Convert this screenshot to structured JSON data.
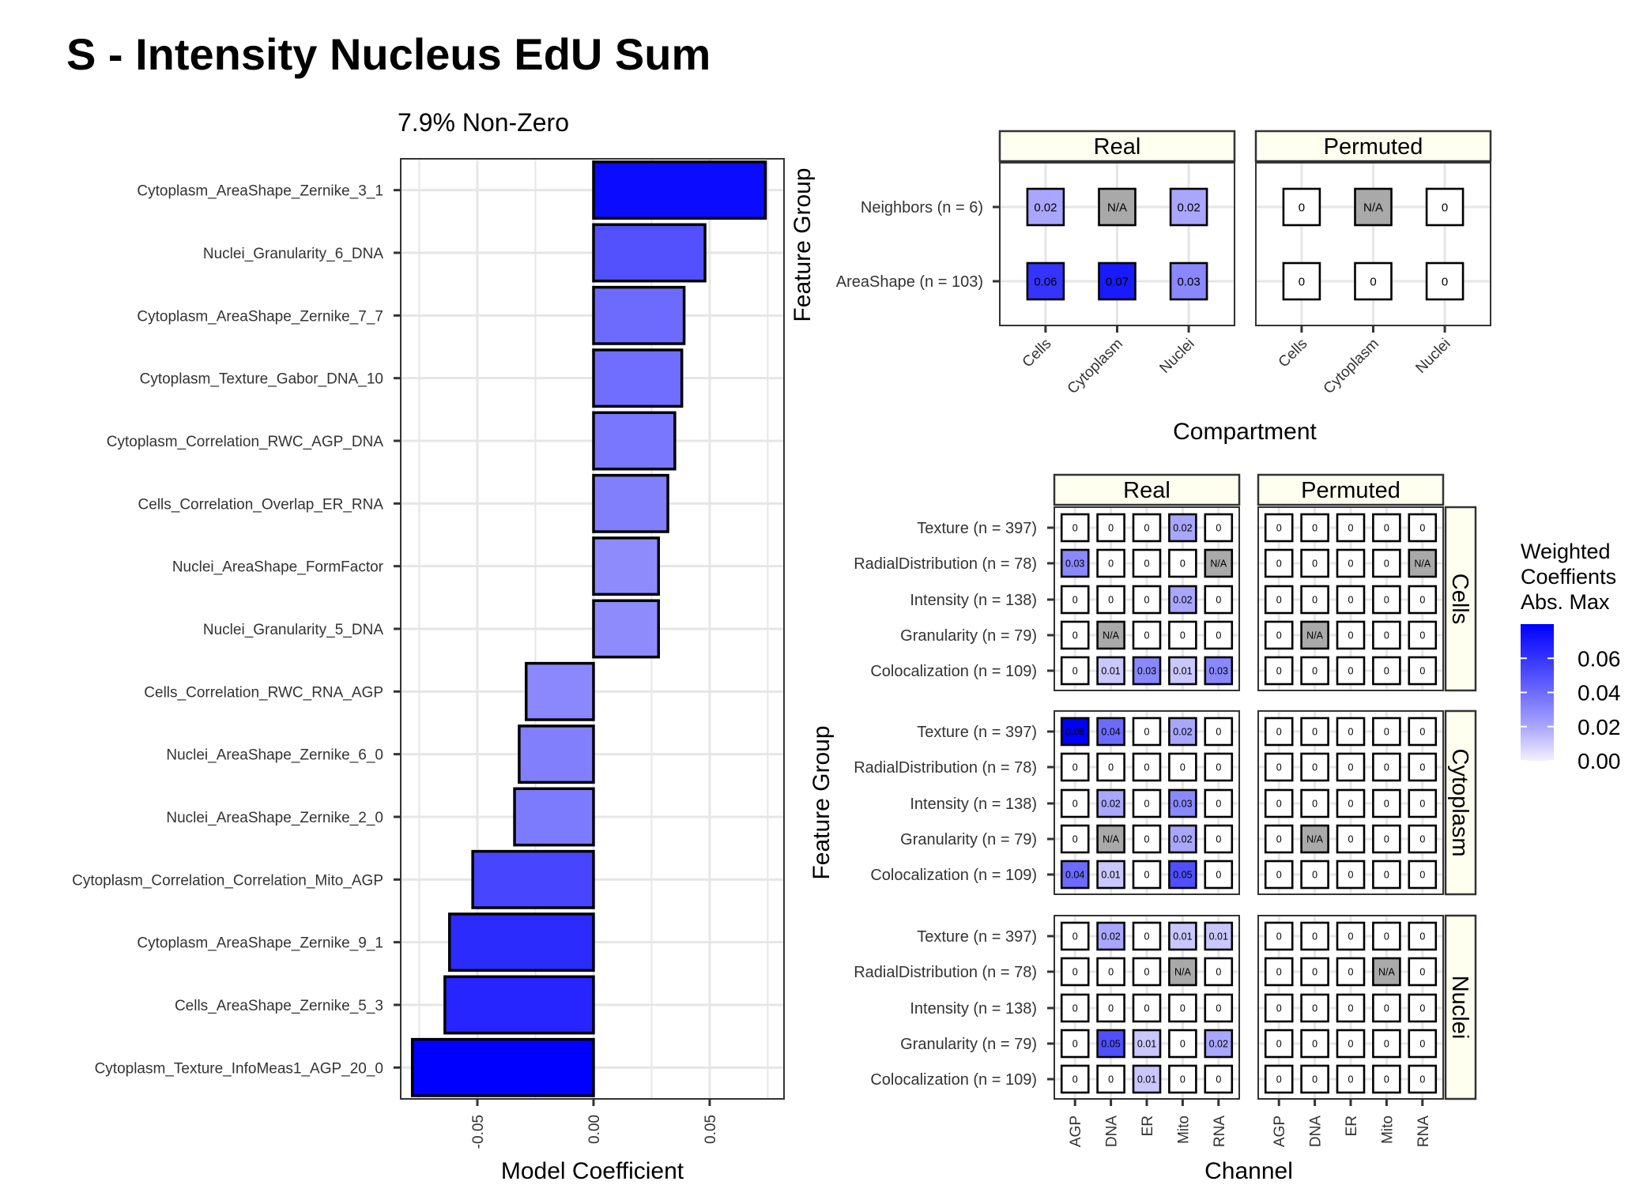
{
  "title": "S - Intensity Nucleus EdU Sum",
  "colors": {
    "bar_low": "#f4f0fc",
    "bar_high": "#0000ff",
    "na_fill": "#a9a9a9",
    "strip_fill": "#fffff0",
    "grid": "#e6e6e6"
  },
  "chart_data": [
    {
      "type": "bar",
      "orientation": "horizontal",
      "title": "7.9% Non-Zero",
      "xlabel": "Model Coefficient",
      "ylabel": "",
      "xlim": [
        -0.083,
        0.082
      ],
      "xticks": [
        -0.05,
        0.0,
        0.05
      ],
      "xtick_labels": [
        "-0.05",
        "0.00",
        "0.05"
      ],
      "grid": true,
      "categories": [
        "Cytoplasm_AreaShape_Zernike_3_1",
        "Nuclei_Granularity_6_DNA",
        "Cytoplasm_AreaShape_Zernike_7_7",
        "Cytoplasm_Texture_Gabor_DNA_10",
        "Cytoplasm_Correlation_RWC_AGP_DNA",
        "Cells_Correlation_Overlap_ER_RNA",
        "Nuclei_AreaShape_FormFactor",
        "Nuclei_Granularity_5_DNA",
        "Cells_Correlation_RWC_RNA_AGP",
        "Nuclei_AreaShape_Zernike_6_0",
        "Nuclei_AreaShape_Zernike_2_0",
        "Cytoplasm_Correlation_Correlation_Mito_AGP",
        "Cytoplasm_AreaShape_Zernike_9_1",
        "Cells_AreaShape_Zernike_5_3",
        "Cytoplasm_Texture_InfoMeas1_AGP_20_0"
      ],
      "values": [
        0.074,
        0.048,
        0.039,
        0.038,
        0.035,
        0.032,
        0.028,
        0.028,
        -0.029,
        -0.032,
        -0.034,
        -0.052,
        -0.062,
        -0.064,
        -0.078
      ]
    },
    {
      "type": "heatmap",
      "xlabel": "Compartment",
      "ylabel": "Feature Group",
      "panels": [
        "Real",
        "Permuted"
      ],
      "x_categories": [
        "Cells",
        "Cytoplasm",
        "Nuclei"
      ],
      "y_categories": [
        "Neighbors (n = 6)",
        "AreaShape (n = 103)"
      ],
      "cells": {
        "Real": [
          [
            {
              "v": 0.02,
              "t": "0.02"
            },
            {
              "v": null,
              "t": "N/A"
            },
            {
              "v": 0.02,
              "t": "0.02"
            }
          ],
          [
            {
              "v": 0.06,
              "t": "0.06"
            },
            {
              "v": 0.07,
              "t": "0.07"
            },
            {
              "v": 0.03,
              "t": "0.03"
            }
          ]
        ],
        "Permuted": [
          [
            {
              "v": 0,
              "t": "0"
            },
            {
              "v": null,
              "t": "N/A"
            },
            {
              "v": 0,
              "t": "0"
            }
          ],
          [
            {
              "v": 0,
              "t": "0"
            },
            {
              "v": 0,
              "t": "0"
            },
            {
              "v": 0,
              "t": "0"
            }
          ]
        ]
      }
    },
    {
      "type": "heatmap",
      "xlabel": "Channel",
      "ylabel": "Feature Group",
      "columns": [
        "Real",
        "Permuted"
      ],
      "rows": [
        "Cells",
        "Cytoplasm",
        "Nuclei"
      ],
      "x_categories": [
        "AGP",
        "DNA",
        "ER",
        "Mito",
        "RNA"
      ],
      "y_categories": [
        "Texture (n = 397)",
        "RadialDistribution (n = 78)",
        "Intensity (n = 138)",
        "Granularity (n = 79)",
        "Colocalization (n = 109)"
      ],
      "cells": {
        "Real": {
          "Cells": [
            [
              "0",
              "0",
              "0",
              "0.02",
              "0"
            ],
            [
              "0.03",
              "0",
              "0",
              "0",
              "N/A"
            ],
            [
              "0",
              "0",
              "0",
              "0.02",
              "0"
            ],
            [
              "0",
              "N/A",
              "0",
              "0",
              "0"
            ],
            [
              "0",
              "0.01",
              "0.03",
              "0.01",
              "0.03"
            ]
          ],
          "Cytoplasm": [
            [
              "0.08",
              "0.04",
              "0",
              "0.02",
              "0"
            ],
            [
              "0",
              "0",
              "0",
              "0",
              "0"
            ],
            [
              "0",
              "0.02",
              "0",
              "0.03",
              "0"
            ],
            [
              "0",
              "N/A",
              "0",
              "0.02",
              "0"
            ],
            [
              "0.04",
              "0.01",
              "0",
              "0.05",
              "0"
            ]
          ],
          "Nuclei": [
            [
              "0",
              "0.02",
              "0",
              "0.01",
              "0.01"
            ],
            [
              "0",
              "0",
              "0",
              "N/A",
              "0"
            ],
            [
              "0",
              "0",
              "0",
              "0",
              "0"
            ],
            [
              "0",
              "0.05",
              "0.01",
              "0",
              "0.02"
            ],
            [
              "0",
              "0",
              "0.01",
              "0",
              "0"
            ]
          ]
        },
        "Permuted": {
          "Cells": [
            [
              "0",
              "0",
              "0",
              "0",
              "0"
            ],
            [
              "0",
              "0",
              "0",
              "0",
              "N/A"
            ],
            [
              "0",
              "0",
              "0",
              "0",
              "0"
            ],
            [
              "0",
              "N/A",
              "0",
              "0",
              "0"
            ],
            [
              "0",
              "0",
              "0",
              "0",
              "0"
            ]
          ],
          "Cytoplasm": [
            [
              "0",
              "0",
              "0",
              "0",
              "0"
            ],
            [
              "0",
              "0",
              "0",
              "0",
              "0"
            ],
            [
              "0",
              "0",
              "0",
              "0",
              "0"
            ],
            [
              "0",
              "N/A",
              "0",
              "0",
              "0"
            ],
            [
              "0",
              "0",
              "0",
              "0",
              "0"
            ]
          ],
          "Nuclei": [
            [
              "0",
              "0",
              "0",
              "0",
              "0"
            ],
            [
              "0",
              "0",
              "0",
              "N/A",
              "0"
            ],
            [
              "0",
              "0",
              "0",
              "0",
              "0"
            ],
            [
              "0",
              "0",
              "0",
              "0",
              "0"
            ],
            [
              "0",
              "0",
              "0",
              "0",
              "0"
            ]
          ]
        }
      }
    }
  ],
  "legend": {
    "title_lines": [
      "Weighted",
      "Coeffients",
      "Abs. Max"
    ],
    "ticks": [
      "0.06",
      "0.04",
      "0.02",
      "0.00"
    ],
    "tick_values": [
      0.06,
      0.04,
      0.02,
      0.0
    ],
    "range": [
      0,
      0.08
    ]
  }
}
